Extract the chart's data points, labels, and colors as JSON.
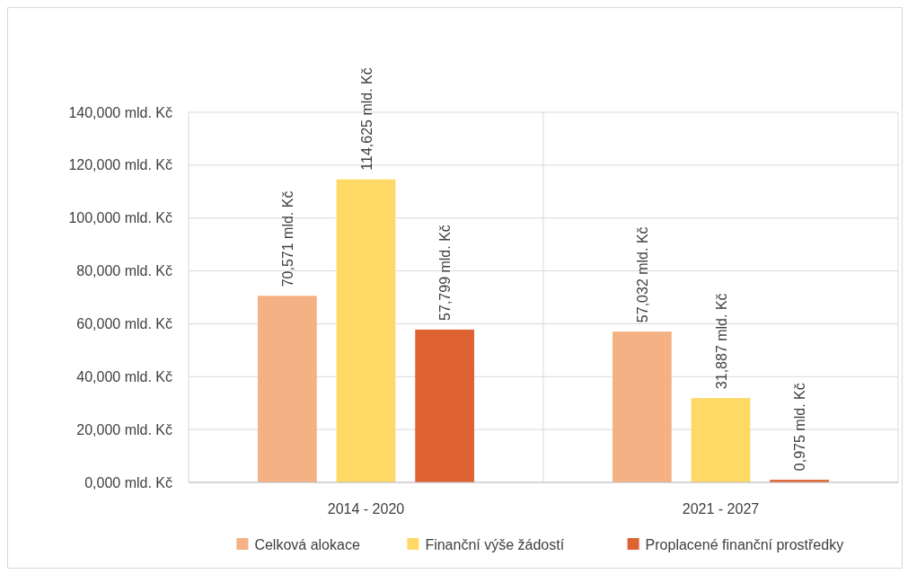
{
  "chart_data": {
    "type": "bar",
    "categories": [
      "2014 - 2020",
      "2021 - 2027"
    ],
    "series": [
      {
        "name": "Celková alokace",
        "color": "#f4b183",
        "values": [
          70.571,
          57.032
        ],
        "value_labels": [
          "70,571 mld. Kč",
          "57,032 mld. Kč"
        ]
      },
      {
        "name": "Finanční výše žádostí",
        "color": "#ffd966",
        "values": [
          114.625,
          31.887
        ],
        "value_labels": [
          "114,625 mld. Kč",
          "31,887 mld. Kč"
        ]
      },
      {
        "name": "Proplacené finanční prostředky",
        "color": "#df6232",
        "values": [
          57.799,
          0.975
        ],
        "value_labels": [
          "57,799 mld. Kč",
          "0,975 mld. Kč"
        ]
      }
    ],
    "ylim": [
      0,
      140
    ],
    "yticks": [
      {
        "value": 0,
        "label": "0,000 mld. Kč"
      },
      {
        "value": 20,
        "label": "20,000 mld. Kč"
      },
      {
        "value": 40,
        "label": "40,000 mld. Kč"
      },
      {
        "value": 60,
        "label": "60,000 mld. Kč"
      },
      {
        "value": 80,
        "label": "80,000 mld. Kč"
      },
      {
        "value": 100,
        "label": "100,000 mld. Kč"
      },
      {
        "value": 120,
        "label": "120,000 mld. Kč"
      },
      {
        "value": 140,
        "label": "140,000 mld. Kč"
      }
    ],
    "grid": true,
    "legend": "bottom"
  }
}
